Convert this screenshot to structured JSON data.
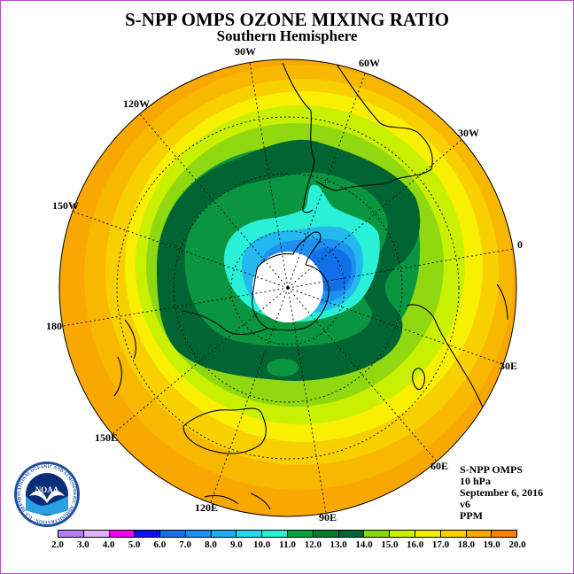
{
  "header": {
    "title": "S-NPP OMPS OZONE MIXING RATIO",
    "subtitle": "Southern Hemisphere"
  },
  "longitudes": [
    "90W",
    "60W",
    "30W",
    "0",
    "30E",
    "60E",
    "90E",
    "120E",
    "150E",
    "180",
    "150W",
    "120W"
  ],
  "info": {
    "line1": "S-NPP OMPS",
    "line2": "10 hPa",
    "line3": "September 6, 2016",
    "line4": "v6",
    "line5": "PPM"
  },
  "logo": {
    "text": "NOAA",
    "ring_text": "NATIONAL OCEANIC AND ATMOSPHERIC ADMINISTRATION · U.S. DEPARTMENT OF COMMERCE"
  },
  "colorbar": {
    "labels": [
      "2.0",
      "3.0",
      "4.0",
      "5.0",
      "6.0",
      "7.0",
      "8.0",
      "9.0",
      "10.0",
      "11.0",
      "12.0",
      "13.0",
      "14.0",
      "15.0",
      "16.0",
      "17.0",
      "18.0",
      "19.0",
      "20.0"
    ],
    "colors": [
      "#b480f0",
      "#e0b0f8",
      "#f000f0",
      "#1010f0",
      "#1a70e8",
      "#1e90f0",
      "#20b0f0",
      "#28d8f0",
      "#28f0d8",
      "#0da040",
      "#0a7a30",
      "#006530",
      "#84d810",
      "#c8f000",
      "#f0f000",
      "#f8d000",
      "#f8a800",
      "#f88000",
      "#f85000",
      "#f00000",
      "#8a5a38"
    ]
  },
  "field_colors": {
    "level_14": "#f8b800",
    "level_13": "#f8d000",
    "level_12": "#f8f000",
    "level_11": "#c8f000",
    "level_10": "#90d810",
    "level_9": "#0a9640",
    "level_8": "#006532",
    "level_7": "#2af0d8",
    "level_6": "#24b8f0",
    "level_5": "#1e90f0",
    "level_4": "#1070e8",
    "pole": "#ffffff"
  }
}
